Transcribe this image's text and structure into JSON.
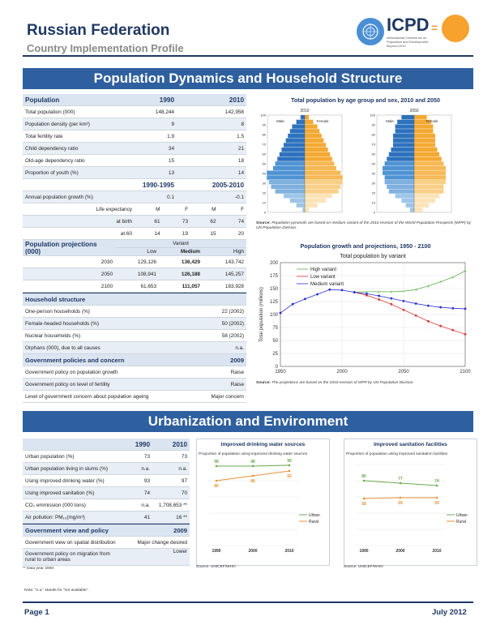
{
  "header": {
    "title": "Russian Federation",
    "subtitle": "Country Implementation Profile",
    "icpd": "ICPD",
    "icpd_sub": "International Conference on Population and Development Beyond 2014",
    "equals": "="
  },
  "sections": {
    "pop": "Population Dynamics and Household Structure",
    "urban": "Urbanization and Environment"
  },
  "pop_table": {
    "h_label": "Population",
    "h_y1": "1990",
    "h_y2": "2010",
    "rows": [
      {
        "label": "Total population (000)",
        "v1": "148,244",
        "v2": "142,958"
      },
      {
        "label": "Population density (per km²)",
        "v1": "9",
        "v2": "8"
      },
      {
        "label": "Total fertility rate",
        "v1": "1.9",
        "v2": "1.5"
      },
      {
        "label": "Child dependency ratio",
        "v1": "34",
        "v2": "21"
      },
      {
        "label": "Old-age dependency ratio",
        "v1": "15",
        "v2": "18"
      },
      {
        "label": "Proportion of youth (%)",
        "v1": "13",
        "v2": "14"
      }
    ],
    "p_h1": "1990-1995",
    "p_h2": "2005-2010",
    "growth": {
      "label": "Annual population growth (%)",
      "v1": "0.1",
      "v2": "-0.1"
    },
    "le": {
      "label": "Life expectancy",
      "m1": "M",
      "f1": "F",
      "m2": "M",
      "f2": "F"
    },
    "birth": {
      "label": "at birth",
      "m1": "61",
      "f1": "73",
      "m2": "62",
      "f2": "74"
    },
    "sixty": {
      "label": "at 60",
      "m1": "14",
      "f1": "19",
      "m2": "15",
      "f2": "20"
    }
  },
  "proj_table": {
    "h_label": "Population projections (000)",
    "variant": "Variant",
    "low": "Low",
    "medium": "Medium",
    "high": "High",
    "rows": [
      {
        "year": "2030",
        "low": "129,126",
        "med": "136,429",
        "high": "143,742"
      },
      {
        "year": "2050",
        "low": "108,941",
        "med": "126,188",
        "high": "145,257"
      },
      {
        "year": "2100",
        "low": "61,653",
        "med": "111,057",
        "high": "183,928"
      }
    ]
  },
  "household": {
    "h_label": "Household structure",
    "rows": [
      {
        "label": "One-person households (%)",
        "v": "22 (2002)"
      },
      {
        "label": "Female-headed households (%)",
        "v": "50 (2002)"
      },
      {
        "label": "Nuclear households (%)",
        "v": "58 (2002)"
      },
      {
        "label": "Orphans (000), due to all causes",
        "v": "n.a."
      }
    ]
  },
  "policies": {
    "h_label": "Government policies and concern",
    "h_year": "2009",
    "rows": [
      {
        "label": "Government policy on population growth",
        "v": "Raise"
      },
      {
        "label": "Government policy on level of fertility",
        "v": "Raise"
      },
      {
        "label": "Level of government concern about population ageing",
        "v": "Major concern"
      }
    ]
  },
  "pyramid": {
    "title": "Total population by age group and sex, 2010 and 2050",
    "y1": "2010",
    "y2": "2050",
    "male": "Male",
    "female": "Female",
    "ages": [
      "100",
      "90",
      "80",
      "70",
      "60",
      "50",
      "40",
      "30",
      "20",
      "10",
      "0"
    ],
    "source_label": "Source:",
    "source": "Population pyramids are based on medium variant of the 2010 revision of the World Population Prospects (WPP) by UN Population Division.",
    "male_2010": [
      0.5,
      2,
      3.5,
      5,
      7,
      8,
      8.5,
      9,
      9,
      7.5,
      7,
      6.5,
      6,
      5.5,
      5,
      4.5,
      4,
      3.5,
      3,
      2,
      1
    ],
    "female_2010": [
      1,
      3,
      5,
      6.5,
      8,
      8.5,
      9,
      9,
      8.5,
      7.5,
      7,
      6.5,
      6,
      5.5,
      5,
      4.5,
      4,
      3.5,
      3,
      2,
      1
    ],
    "male_2050": [
      1,
      2,
      3,
      4.5,
      6,
      6.5,
      7,
      7,
      7.5,
      7.5,
      7,
      6.5,
      6,
      5.5,
      5,
      5,
      5,
      4.5,
      4.5,
      4,
      3
    ],
    "female_2050": [
      2,
      3.5,
      5,
      6,
      7,
      7,
      7.5,
      7.5,
      7.5,
      7.5,
      7,
      6.5,
      6,
      5.5,
      5,
      5,
      5,
      4.5,
      4.5,
      4,
      3
    ]
  },
  "chart_data": [
    {
      "type": "line",
      "title": "Population growth and projections, 1950 - 2100",
      "subtitle": "Total population by variant",
      "ylabel": "Total population (millions)",
      "xlim": [
        1950,
        2100
      ],
      "ylim": [
        0,
        200
      ],
      "yticks": [
        0,
        25,
        50,
        75,
        100,
        125,
        150,
        175,
        200
      ],
      "xticks": [
        1950,
        2000,
        2050,
        2100
      ],
      "series": [
        {
          "name": "High variant",
          "color": "#5bb04a",
          "x": [
            2010,
            2020,
            2030,
            2040,
            2050,
            2060,
            2070,
            2080,
            2090,
            2100
          ],
          "y": [
            143,
            144,
            144,
            144,
            145,
            148,
            155,
            163,
            172,
            184
          ]
        },
        {
          "name": "Low variant",
          "color": "#d83a3a",
          "x": [
            2010,
            2020,
            2030,
            2040,
            2050,
            2060,
            2070,
            2080,
            2090,
            2100
          ],
          "y": [
            143,
            137,
            129,
            120,
            109,
            98,
            87,
            78,
            70,
            62
          ]
        },
        {
          "name": "Medium variant",
          "color": "#2a2fd0",
          "x": [
            1950,
            1960,
            1970,
            1980,
            1990,
            2000,
            2010,
            2020,
            2030,
            2040,
            2050,
            2060,
            2070,
            2080,
            2090,
            2100
          ],
          "y": [
            103,
            120,
            130,
            139,
            148,
            147,
            143,
            140,
            136,
            131,
            126,
            121,
            117,
            114,
            112,
            111
          ]
        }
      ],
      "source_label": "Source:",
      "source": "The projections are based on the 2010 revision of WPP by UN Population Division."
    },
    {
      "type": "line",
      "title": "Improved drinking water sources",
      "subtitle": "Proportion of population using improved drinking water sources",
      "categories": [
        "1990",
        "2000",
        "2010"
      ],
      "ylim": [
        0,
        100
      ],
      "series": [
        {
          "name": "Urban",
          "color": "#6aa84f",
          "values": [
            98,
            98,
            99
          ]
        },
        {
          "name": "Rural",
          "color": "#e69138",
          "values": [
            80,
            86,
            92
          ]
        }
      ],
      "source": "Source: UNICEF/WHO"
    },
    {
      "type": "line",
      "title": "Improved sanitation facilities",
      "subtitle": "Proportion of population using improved sanitation facilities",
      "categories": [
        "1990",
        "2000",
        "2010"
      ],
      "ylim": [
        0,
        100
      ],
      "series": [
        {
          "name": "Urban",
          "color": "#6aa84f",
          "values": [
            80,
            77,
            74
          ]
        },
        {
          "name": "Rural",
          "color": "#e69138",
          "values": [
            58,
            59,
            59
          ]
        }
      ],
      "source": "Source: UNICEF/WHO"
    }
  ],
  "urban_table": {
    "h_y1": "1990",
    "h_y2": "2010",
    "rows": [
      {
        "label": "Urban population (%)",
        "v1": "73",
        "v2": "73"
      },
      {
        "label": "Urban population living in slums (%)",
        "v1": "n.a.",
        "v2": "n.a."
      },
      {
        "label": "Using improved drinking water (%)",
        "v1": "93",
        "v2": "97"
      },
      {
        "label": "Using improved sanitation (%)",
        "v1": "74",
        "v2": "70"
      },
      {
        "label": "CO₂ emmission (000 tons)",
        "v1": "n.a.",
        "v2": "1,708,653 **"
      },
      {
        "label": "Air pollution: PM₁₀(mg/m³)",
        "v1": "41",
        "v2": "16 **"
      }
    ],
    "view_h": "Government view and policy",
    "view_year": "2009",
    "views": [
      {
        "label": "Government view on spatial distribution",
        "v": "Major change desired"
      },
      {
        "label": "Government policy on migration from rural to urban areas",
        "v": "Lower"
      }
    ],
    "footnote": "** Data year 2008."
  },
  "note": "Note: \"n.a.\" stands for \"not available\".",
  "footer": {
    "page": "Page 1",
    "date": "July 2012"
  }
}
